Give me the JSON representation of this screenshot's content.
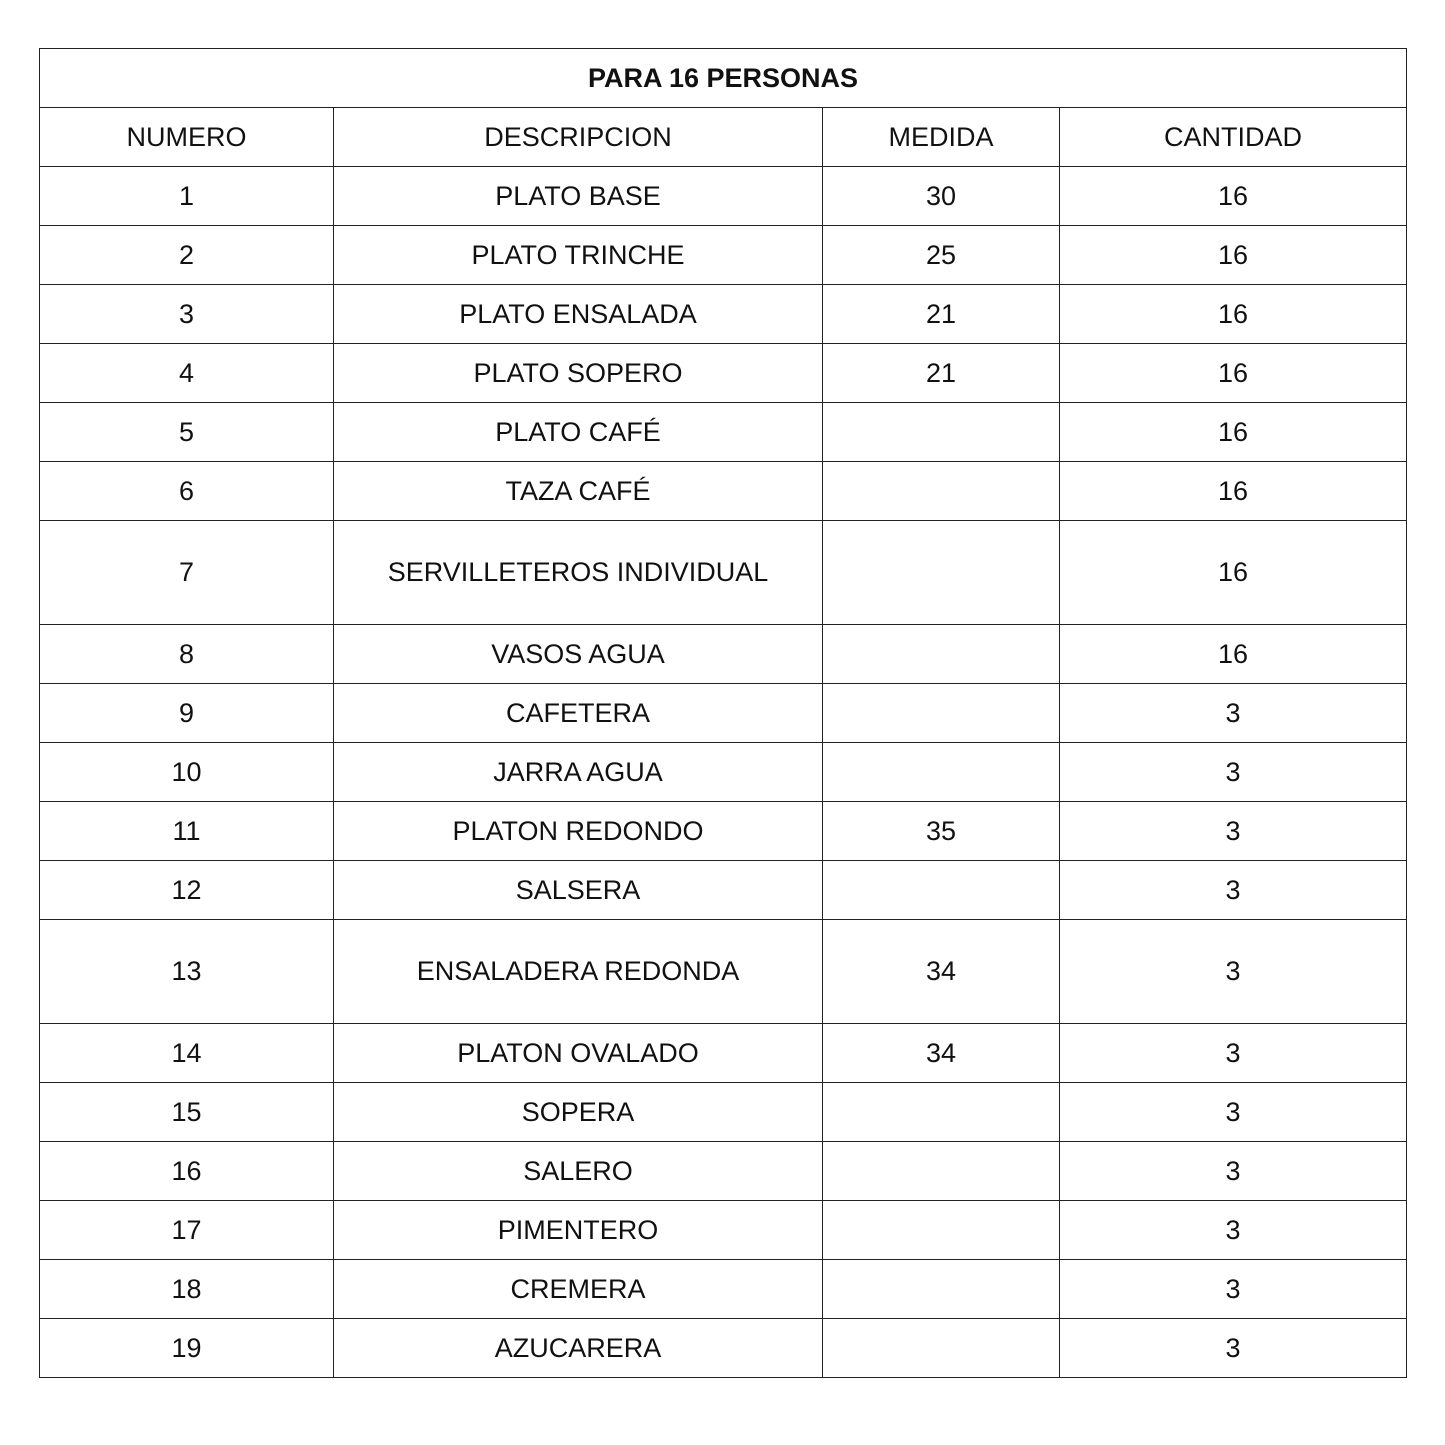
{
  "title": "PARA 16 PERSONAS",
  "headers": [
    "NUMERO",
    "DESCRIPCION",
    "MEDIDA",
    "CANTIDAD"
  ],
  "rows": [
    {
      "numero": "1",
      "descripcion": "PLATO BASE",
      "medida": "30",
      "cantidad": "16"
    },
    {
      "numero": "2",
      "descripcion": "PLATO TRINCHE",
      "medida": "25",
      "cantidad": "16"
    },
    {
      "numero": "3",
      "descripcion": "PLATO ENSALADA",
      "medida": "21",
      "cantidad": "16"
    },
    {
      "numero": "4",
      "descripcion": "PLATO SOPERO",
      "medida": "21",
      "cantidad": "16"
    },
    {
      "numero": "5",
      "descripcion": "PLATO CAFÉ",
      "medida": "",
      "cantidad": "16"
    },
    {
      "numero": "6",
      "descripcion": "TAZA CAFÉ",
      "medida": "",
      "cantidad": "16"
    },
    {
      "numero": "7",
      "descripcion": "SERVILLETEROS INDIVIDUAL",
      "medida": "",
      "cantidad": "16",
      "tall": true
    },
    {
      "numero": "8",
      "descripcion": "VASOS AGUA",
      "medida": "",
      "cantidad": "16"
    },
    {
      "numero": "9",
      "descripcion": "CAFETERA",
      "medida": "",
      "cantidad": "3"
    },
    {
      "numero": "10",
      "descripcion": "JARRA AGUA",
      "medida": "",
      "cantidad": "3"
    },
    {
      "numero": "11",
      "descripcion": "PLATON REDONDO",
      "medida": "35",
      "cantidad": "3"
    },
    {
      "numero": "12",
      "descripcion": "SALSERA",
      "medida": "",
      "cantidad": "3"
    },
    {
      "numero": "13",
      "descripcion": "ENSALADERA REDONDA",
      "medida": "34",
      "cantidad": "3",
      "tall": true
    },
    {
      "numero": "14",
      "descripcion": "PLATON OVALADO",
      "medida": "34",
      "cantidad": "3"
    },
    {
      "numero": "15",
      "descripcion": "SOPERA",
      "medida": "",
      "cantidad": "3"
    },
    {
      "numero": "16",
      "descripcion": "SALERO",
      "medida": "",
      "cantidad": "3"
    },
    {
      "numero": "17",
      "descripcion": "PIMENTERO",
      "medida": "",
      "cantidad": "3"
    },
    {
      "numero": "18",
      "descripcion": "CREMERA",
      "medida": "",
      "cantidad": "3"
    },
    {
      "numero": "19",
      "descripcion": "AZUCARERA",
      "medida": "",
      "cantidad": "3"
    }
  ]
}
